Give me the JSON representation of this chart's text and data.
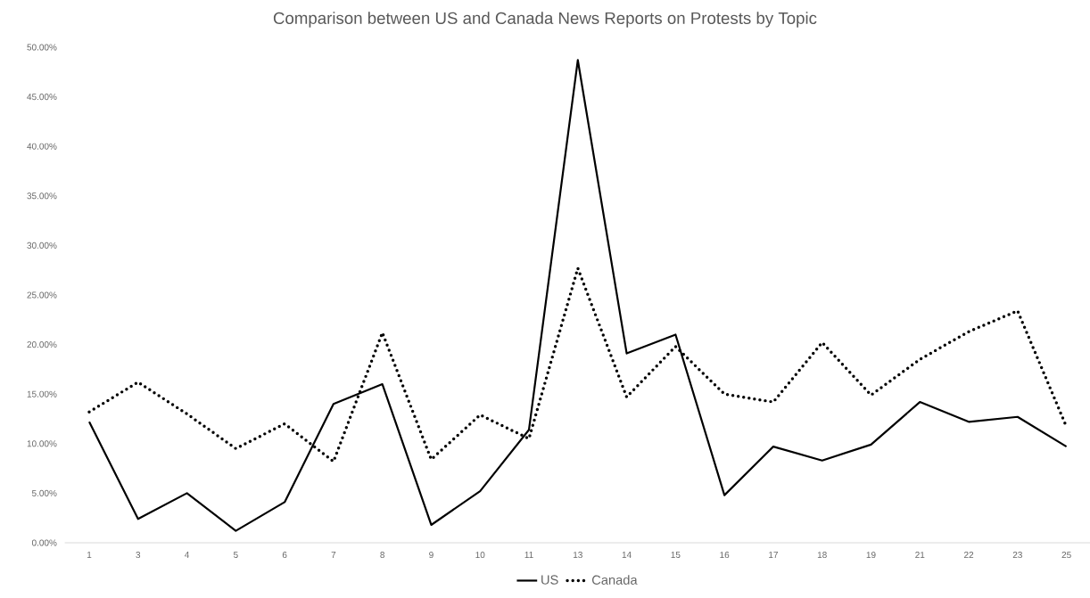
{
  "chart_data": {
    "type": "line",
    "title": "Comparison between US and Canada News Reports on Protests by Topic",
    "categories": [
      "1",
      "3",
      "4",
      "5",
      "6",
      "7",
      "8",
      "9",
      "10",
      "11",
      "13",
      "14",
      "15",
      "16",
      "17",
      "18",
      "19",
      "21",
      "22",
      "23",
      "25"
    ],
    "series": [
      {
        "name": "US",
        "color": "#000000",
        "line_style": "solid",
        "values": [
          12.2,
          2.4,
          5.0,
          1.2,
          4.1,
          14.0,
          16.0,
          1.8,
          5.2,
          11.4,
          48.7,
          19.1,
          21.0,
          4.8,
          9.7,
          8.3,
          9.9,
          14.2,
          12.2,
          12.7,
          9.7
        ]
      },
      {
        "name": "Canada",
        "color": "#000000",
        "line_style": "dotted",
        "values": [
          13.2,
          16.2,
          13.0,
          9.5,
          12.0,
          8.2,
          21.2,
          8.4,
          12.9,
          10.5,
          27.7,
          14.7,
          19.8,
          15.0,
          14.2,
          20.2,
          14.9,
          18.5,
          21.3,
          23.4,
          11.7
        ]
      }
    ],
    "ylim": [
      0,
      50
    ],
    "yticks": [
      {
        "value": 0,
        "label": "0.00%"
      },
      {
        "value": 5,
        "label": "5.00%"
      },
      {
        "value": 10,
        "label": "10.00%"
      },
      {
        "value": 15,
        "label": "15.00%"
      },
      {
        "value": 20,
        "label": "20.00%"
      },
      {
        "value": 25,
        "label": "25.00%"
      },
      {
        "value": 30,
        "label": "30.00%"
      },
      {
        "value": 35,
        "label": "35.00%"
      },
      {
        "value": 40,
        "label": "40.00%"
      },
      {
        "value": 45,
        "label": "45.00%"
      },
      {
        "value": 50,
        "label": "50.00%"
      }
    ],
    "grid": false,
    "legend": "bottom",
    "marker": "none"
  }
}
